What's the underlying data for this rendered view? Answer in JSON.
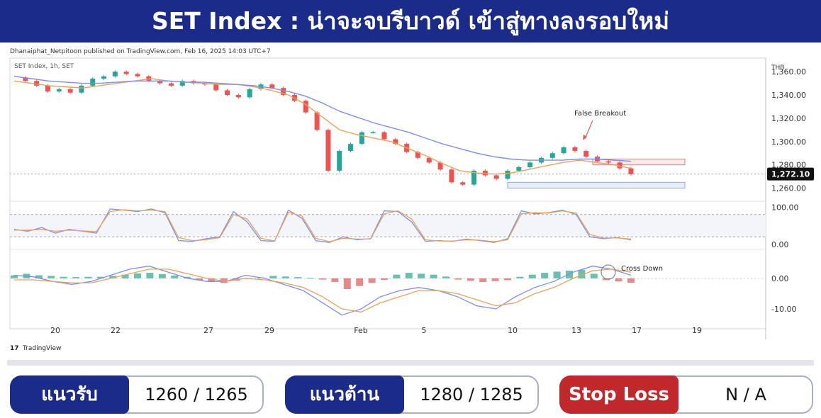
{
  "header": {
    "title": "SET Index : น่าจะจบรีบาวด์ เข้าสู่ทางลงรอบใหม่"
  },
  "publisher_line": "Dhanaiphat_Netpitoon published on TradingView.com, Feb 16, 2025 14:03 UTC+7",
  "watermark": "TradingView",
  "colors": {
    "banner": "#1b2b8a",
    "up": "#26a69a",
    "down": "#ef5350",
    "ema_fast": "#e8a25a",
    "ema_slow": "#7c8ef0",
    "stop_red": "#c0282b",
    "label_navy": "#1b2b8a"
  },
  "chart_data": [
    {
      "type": "candlestick",
      "title": "SET Index, 1h, SET",
      "ylabel": "THB",
      "ylim": [
        1250,
        1368
      ],
      "y_ticks": [
        "1,360.00",
        "1,340.00",
        "1,320.00",
        "1,300.00",
        "1,280.00",
        "1,260.00"
      ],
      "y_tick_values": [
        1360,
        1340,
        1320,
        1300,
        1280,
        1260
      ],
      "x_ticks": [
        "20",
        "22",
        "27",
        "29",
        "Feb",
        "5",
        "10",
        "13",
        "17",
        "19"
      ],
      "last_price": "1,272.10",
      "last_price_value": 1272.1,
      "close_path": [
        1355,
        1352,
        1348,
        1343,
        1345,
        1342,
        1348,
        1354,
        1356,
        1360,
        1358,
        1356,
        1352,
        1350,
        1348,
        1352,
        1350,
        1349,
        1344,
        1340,
        1338,
        1345,
        1349,
        1346,
        1340,
        1335,
        1325,
        1310,
        1275,
        1292,
        1298,
        1308,
        1308,
        1302,
        1298,
        1291,
        1286,
        1282,
        1276,
        1265,
        1263,
        1275,
        1271,
        1268,
        1275,
        1278,
        1282,
        1286,
        1290,
        1295,
        1292,
        1287,
        1283,
        1282,
        1277,
        1272
      ],
      "series": [
        {
          "name": "",
          "color_key": "ema_fast",
          "values": [
            1352,
            1350,
            1348,
            1347,
            1346,
            1348,
            1350,
            1352,
            1354,
            1352,
            1351,
            1350,
            1349,
            1349,
            1347,
            1344,
            1340,
            1332,
            1321,
            1310,
            1306,
            1303,
            1300,
            1294,
            1288,
            1281,
            1275,
            1273,
            1272,
            1273,
            1276,
            1279,
            1282,
            1284,
            1282,
            1280,
            1277
          ]
        },
        {
          "name": "",
          "color_key": "ema_slow",
          "values": [
            1356,
            1354,
            1352,
            1351,
            1350,
            1350,
            1351,
            1352,
            1352,
            1352,
            1351,
            1351,
            1350,
            1349,
            1348,
            1346,
            1343,
            1339,
            1333,
            1326,
            1321,
            1316,
            1312,
            1308,
            1303,
            1298,
            1294,
            1290,
            1287,
            1285,
            1284,
            1284,
            1284,
            1285,
            1285,
            1284,
            1283
          ]
        }
      ],
      "zones": [
        {
          "name": "resistance",
          "range": [
            1280,
            1285
          ]
        },
        {
          "name": "support",
          "range": [
            1260,
            1265
          ]
        }
      ],
      "annotations": [
        {
          "text": "False Breakout"
        }
      ]
    },
    {
      "type": "line",
      "name": "stochastic",
      "ylim": [
        -8,
        112
      ],
      "y_ticks": [
        "100.00",
        "0.00"
      ],
      "y_tick_values": [
        100,
        0
      ],
      "bands": [
        80,
        20
      ],
      "series": [
        {
          "name": "",
          "color_key": "ema_slow",
          "values": [
            40,
            35,
            45,
            30,
            40,
            35,
            30,
            95,
            92,
            88,
            95,
            85,
            10,
            8,
            15,
            20,
            88,
            60,
            10,
            8,
            92,
            70,
            10,
            5,
            20,
            12,
            15,
            90,
            88,
            60,
            8,
            10,
            8,
            14,
            10,
            5,
            15,
            90,
            82,
            85,
            92,
            80,
            20,
            15,
            18,
            12
          ]
        },
        {
          "name": "",
          "color_key": "ema_fast",
          "values": [
            38,
            38,
            40,
            35,
            38,
            36,
            34,
            88,
            93,
            90,
            92,
            88,
            18,
            10,
            12,
            18,
            80,
            68,
            16,
            9,
            86,
            76,
            16,
            7,
            16,
            14,
            14,
            82,
            90,
            68,
            12,
            9,
            9,
            12,
            11,
            7,
            12,
            82,
            85,
            84,
            90,
            84,
            26,
            17,
            17,
            14
          ]
        }
      ]
    },
    {
      "type": "histogram",
      "name": "macd",
      "ylim": [
        -13,
        9
      ],
      "y_ticks": [
        "0.00",
        "-10.00"
      ],
      "y_tick_values": [
        0,
        -10
      ],
      "histogram": [
        1,
        1.5,
        1,
        0.8,
        0.5,
        0.4,
        0.5,
        0.5,
        0.8,
        1.2,
        1.6,
        1.8,
        1.4,
        0.9,
        0.5,
        -0.6,
        -1.2,
        -1.5,
        -0.8,
        -0.3,
        0.3,
        0.8,
        0.6,
        0.4,
        0.2,
        -0.4,
        -1.2,
        -3.5,
        -2.5,
        -1.5,
        -0.5,
        1.2,
        1.8,
        1.5,
        1.2,
        0.6,
        -0.4,
        -0.8,
        -1.2,
        -0.9,
        -0.6,
        0.5,
        1.2,
        1.8,
        2.2,
        2.5,
        2.8,
        1.5,
        -0.6,
        -1.0,
        -1.4
      ],
      "series": [
        {
          "name": "",
          "color_key": "ema_slow",
          "values": [
            1,
            0.5,
            -1,
            -2,
            -1,
            1,
            3,
            4,
            2,
            0,
            -1,
            -1,
            1,
            0,
            -2,
            -4,
            -8,
            -12,
            -10,
            -6,
            -4,
            -3,
            -4,
            -6,
            -9,
            -10,
            -6,
            -3,
            -1,
            2,
            4,
            3,
            1
          ]
        },
        {
          "name": "",
          "color_key": "ema_fast",
          "values": [
            -0.5,
            -0.5,
            -1,
            -1.5,
            -1.5,
            0,
            1.5,
            3,
            3,
            1.5,
            0,
            -1,
            0,
            -0.5,
            -1.5,
            -3,
            -6,
            -10,
            -11,
            -8,
            -6,
            -4,
            -4,
            -5,
            -7,
            -9,
            -8,
            -5,
            -3,
            0,
            2.5,
            3,
            2
          ]
        }
      ],
      "annotations": [
        {
          "text": "Cross Down"
        }
      ]
    }
  ],
  "levels": [
    {
      "label": "แนวรับ",
      "value": "1260 / 1265"
    },
    {
      "label": "แนวต้าน",
      "value": "1280 / 1285"
    },
    {
      "label": "Stop Loss",
      "value": "N / A"
    }
  ]
}
